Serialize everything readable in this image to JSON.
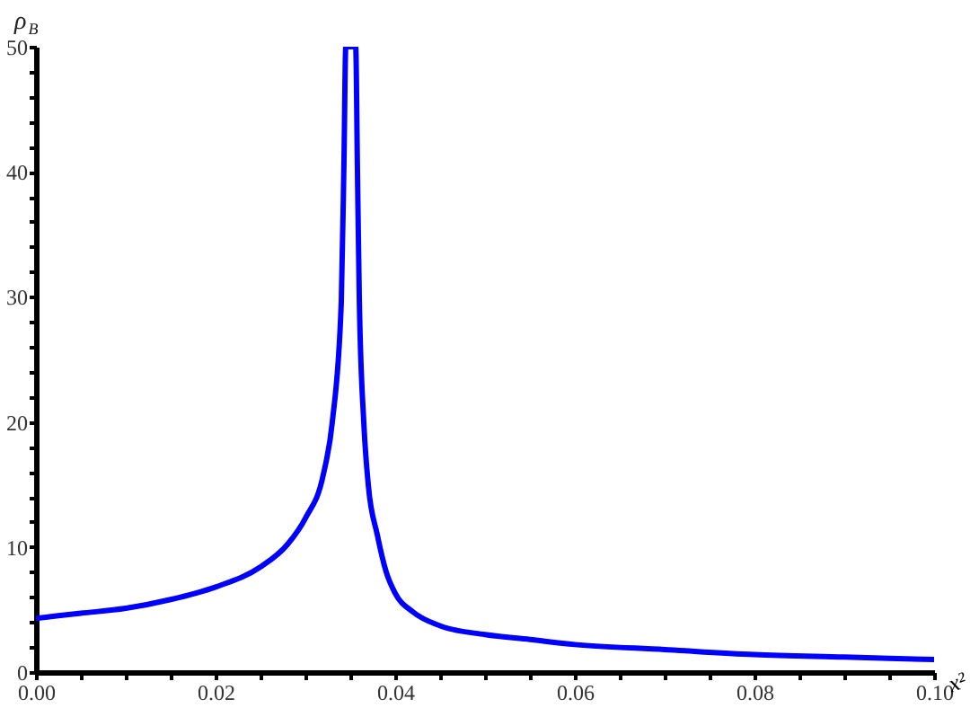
{
  "chart_data": {
    "type": "line",
    "xlabel": "x²",
    "ylabel": "ρ$_{B}$",
    "x": [
      0,
      0.005,
      0.01,
      0.015,
      0.02,
      0.025,
      0.028,
      0.03,
      0.032,
      0.033,
      0.034,
      0.0343,
      0.0345,
      0.0356,
      0.0358,
      0.036,
      0.0365,
      0.037,
      0.038,
      0.039,
      0.04,
      0.042,
      0.045,
      0.05,
      0.055,
      0.06,
      0.07,
      0.08,
      0.09,
      0.1
    ],
    "series": [
      {
        "color": "#0000ff",
        "values": [
          4.3,
          4.7,
          5.1,
          5.8,
          6.8,
          8.4,
          10.2,
          12.3,
          15.8,
          20,
          29.6,
          41,
          50,
          50,
          40,
          30,
          20,
          15,
          11,
          8,
          6.3,
          4.8,
          3.7,
          3.0,
          2.6,
          2.2,
          1.8,
          1.4,
          1.2,
          1.0
        ]
      }
    ],
    "xlim": [
      0,
      0.1
    ],
    "ylim": [
      0,
      50
    ],
    "xticks": [
      {
        "value": 0,
        "label": "0.00"
      },
      {
        "value": 0.005,
        "label": null
      },
      {
        "value": 0.01,
        "label": null
      },
      {
        "value": 0.015,
        "label": null
      },
      {
        "value": 0.02,
        "label": "0.02"
      },
      {
        "value": 0.025,
        "label": null
      },
      {
        "value": 0.03,
        "label": null
      },
      {
        "value": 0.035,
        "label": null
      },
      {
        "value": 0.04,
        "label": "0.04"
      },
      {
        "value": 0.045,
        "label": null
      },
      {
        "value": 0.05,
        "label": null
      },
      {
        "value": 0.055,
        "label": null
      },
      {
        "value": 0.06,
        "label": "0.06"
      },
      {
        "value": 0.065,
        "label": null
      },
      {
        "value": 0.07,
        "label": null
      },
      {
        "value": 0.075,
        "label": null
      },
      {
        "value": 0.08,
        "label": "0.08"
      },
      {
        "value": 0.085,
        "label": null
      },
      {
        "value": 0.09,
        "label": null
      },
      {
        "value": 0.095,
        "label": null
      },
      {
        "value": 0.1,
        "label": "0.10"
      }
    ],
    "yticks": [
      0,
      {
        "value": 2,
        "label": null
      },
      {
        "value": 4,
        "label": null
      },
      {
        "value": 6,
        "label": null
      },
      {
        "value": 8,
        "label": null
      },
      10,
      {
        "value": 12,
        "label": null
      },
      {
        "value": 14,
        "label": null
      },
      {
        "value": 16,
        "label": null
      },
      {
        "value": 18,
        "label": null
      },
      20,
      {
        "value": 22,
        "label": null
      },
      {
        "value": 24,
        "label": null
      },
      {
        "value": 26,
        "label": null
      },
      {
        "value": 28,
        "label": null
      },
      30,
      {
        "value": 32,
        "label": null
      },
      {
        "value": 34,
        "label": null
      },
      {
        "value": 36,
        "label": null
      },
      {
        "value": 38,
        "label": null
      },
      40,
      {
        "value": 42,
        "label": null
      },
      {
        "value": 44,
        "label": null
      },
      {
        "value": 46,
        "label": null
      },
      {
        "value": 48,
        "label": null
      },
      50
    ],
    "grid": false,
    "line_style": "solid",
    "marker": "none"
  }
}
